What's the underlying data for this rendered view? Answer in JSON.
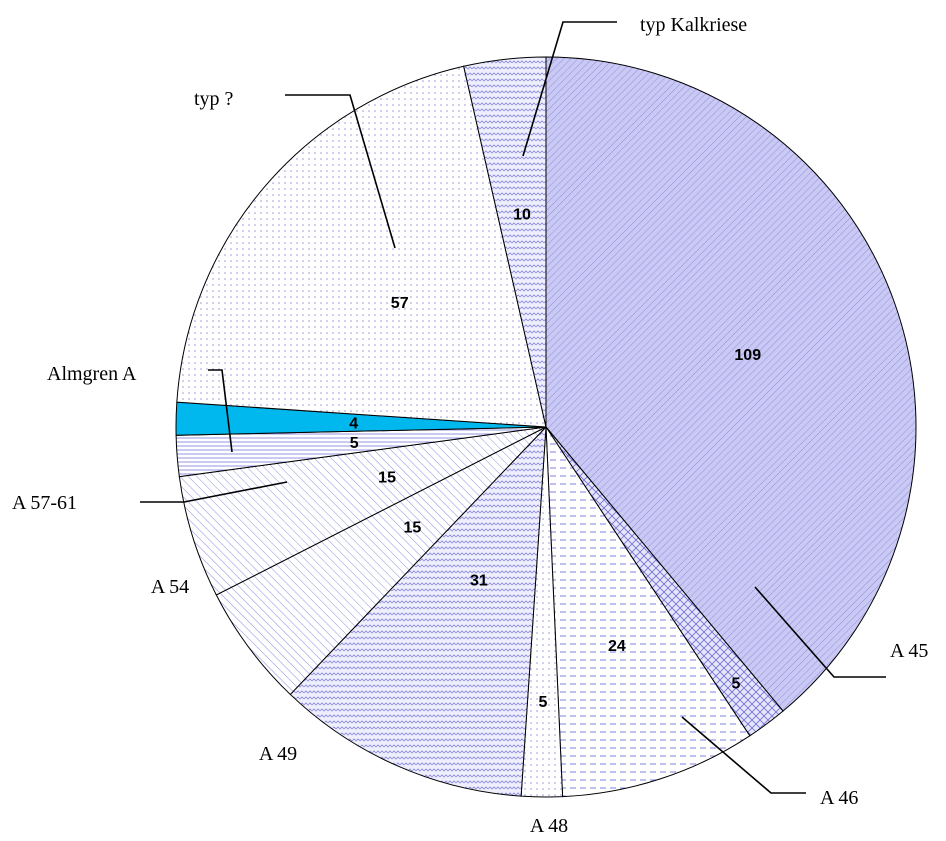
{
  "chart_data": {
    "type": "pie",
    "title": "",
    "slices": [
      {
        "label": "A 45",
        "value": 109,
        "color": "#c9c9f4"
      },
      {
        "label": "A 46",
        "value": 5,
        "color": "#d6d6f6"
      },
      {
        "label": "A 48",
        "value": 24,
        "color": "#e6e6fa"
      },
      {
        "label": "",
        "value": 5,
        "color": "#f4f4fd"
      },
      {
        "label": "A 49",
        "value": 31,
        "color": "#dcdcf8"
      },
      {
        "label": "A 54",
        "value": 15,
        "color": "#e4e4f9"
      },
      {
        "label": "",
        "value": 15,
        "color": "#ececfb"
      },
      {
        "label": "A 57-61",
        "value": 5,
        "color": "#e0e0f8"
      },
      {
        "label": "Almgren A",
        "value": 4,
        "color": "#00b8ee"
      },
      {
        "label": "typ ?",
        "value": 57,
        "color": "#f2f2fa"
      },
      {
        "label": "typ Kalkriese",
        "value": 10,
        "color": "#d8d8f7"
      }
    ]
  }
}
